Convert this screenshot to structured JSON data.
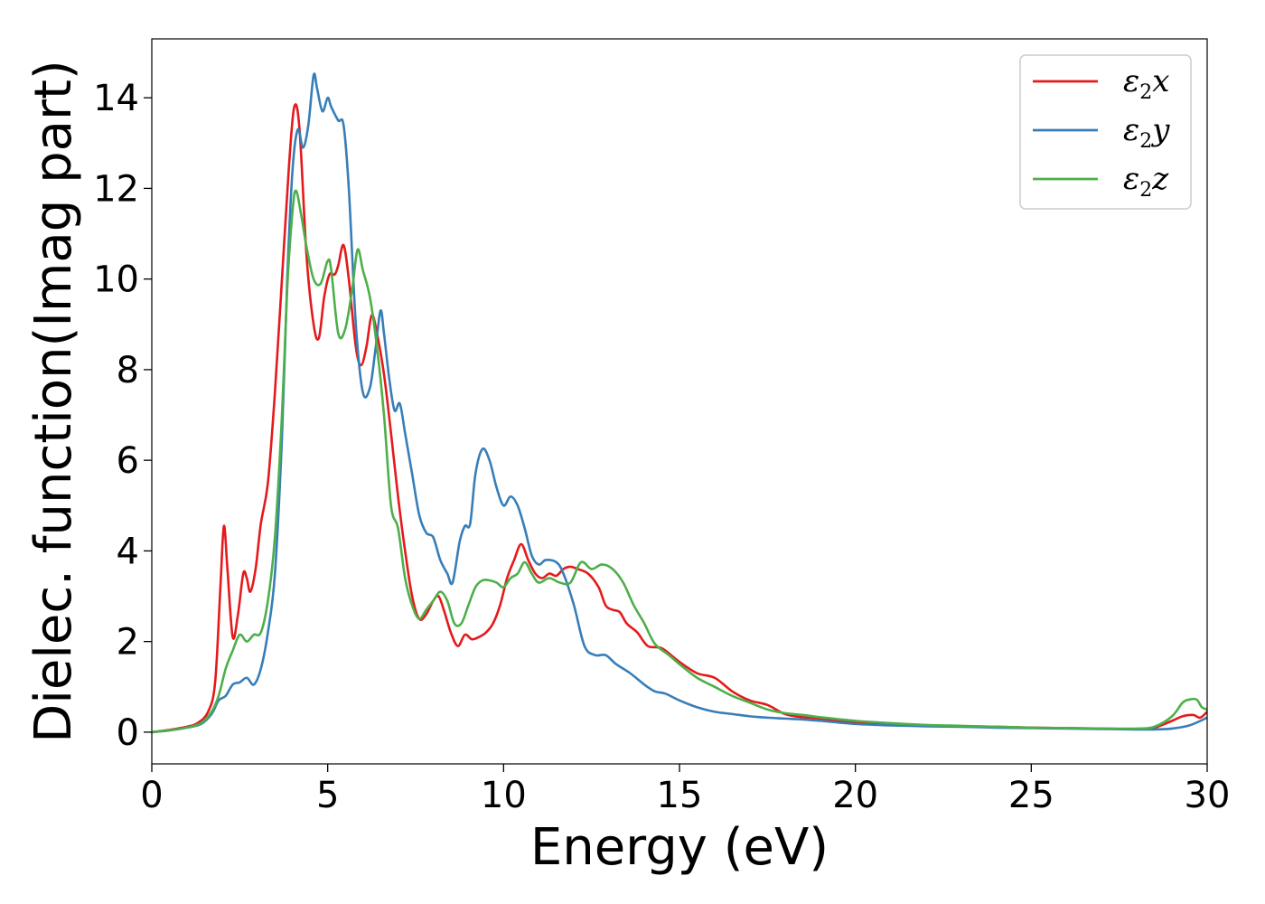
{
  "chart_data": {
    "type": "line",
    "xlabel": "Energy (eV)",
    "ylabel": "Dielec. function(Imag part)",
    "xlim": [
      0,
      30
    ],
    "ylim": [
      -0.7,
      15.3
    ],
    "xticks": [
      0,
      5,
      10,
      15,
      20,
      25,
      30
    ],
    "yticks": [
      0,
      2,
      4,
      6,
      8,
      10,
      12,
      14
    ],
    "grid": false,
    "legend_position": "top-right",
    "series": [
      {
        "name": "ε2x",
        "symbol": "ε",
        "sub": "2",
        "axis": "x",
        "color": "#e41a1c",
        "points": [
          [
            0,
            0
          ],
          [
            0.5,
            0.05
          ],
          [
            1,
            0.12
          ],
          [
            1.3,
            0.2
          ],
          [
            1.6,
            0.45
          ],
          [
            1.8,
            1.1
          ],
          [
            1.95,
            3.2
          ],
          [
            2.05,
            4.55
          ],
          [
            2.15,
            3.6
          ],
          [
            2.3,
            2.1
          ],
          [
            2.45,
            2.6
          ],
          [
            2.6,
            3.5
          ],
          [
            2.7,
            3.4
          ],
          [
            2.8,
            3.1
          ],
          [
            2.95,
            3.6
          ],
          [
            3.1,
            4.6
          ],
          [
            3.3,
            5.5
          ],
          [
            3.5,
            7.5
          ],
          [
            3.7,
            10.0
          ],
          [
            3.9,
            12.5
          ],
          [
            4.05,
            13.8
          ],
          [
            4.2,
            13.3
          ],
          [
            4.4,
            10.5
          ],
          [
            4.6,
            9.0
          ],
          [
            4.75,
            8.7
          ],
          [
            4.9,
            9.6
          ],
          [
            5.05,
            10.1
          ],
          [
            5.2,
            10.1
          ],
          [
            5.3,
            10.3
          ],
          [
            5.45,
            10.75
          ],
          [
            5.6,
            10.0
          ],
          [
            5.8,
            8.5
          ],
          [
            5.95,
            8.1
          ],
          [
            6.1,
            8.5
          ],
          [
            6.25,
            9.2
          ],
          [
            6.4,
            8.8
          ],
          [
            6.6,
            7.9
          ],
          [
            6.8,
            6.6
          ],
          [
            7.0,
            5.2
          ],
          [
            7.2,
            4.0
          ],
          [
            7.4,
            3.0
          ],
          [
            7.6,
            2.5
          ],
          [
            7.8,
            2.6
          ],
          [
            8.0,
            2.9
          ],
          [
            8.15,
            3.0
          ],
          [
            8.3,
            2.7
          ],
          [
            8.5,
            2.2
          ],
          [
            8.7,
            1.9
          ],
          [
            8.9,
            2.15
          ],
          [
            9.1,
            2.05
          ],
          [
            9.3,
            2.1
          ],
          [
            9.5,
            2.2
          ],
          [
            9.7,
            2.4
          ],
          [
            9.9,
            2.8
          ],
          [
            10.1,
            3.4
          ],
          [
            10.3,
            3.8
          ],
          [
            10.5,
            4.15
          ],
          [
            10.7,
            3.8
          ],
          [
            10.9,
            3.5
          ],
          [
            11.1,
            3.4
          ],
          [
            11.3,
            3.5
          ],
          [
            11.5,
            3.45
          ],
          [
            11.7,
            3.6
          ],
          [
            11.9,
            3.65
          ],
          [
            12.1,
            3.6
          ],
          [
            12.4,
            3.5
          ],
          [
            12.7,
            3.2
          ],
          [
            12.9,
            2.8
          ],
          [
            13.1,
            2.7
          ],
          [
            13.3,
            2.65
          ],
          [
            13.5,
            2.4
          ],
          [
            13.8,
            2.2
          ],
          [
            14.1,
            1.9
          ],
          [
            14.5,
            1.85
          ],
          [
            15.0,
            1.55
          ],
          [
            15.5,
            1.3
          ],
          [
            16.0,
            1.2
          ],
          [
            16.5,
            0.9
          ],
          [
            17.0,
            0.7
          ],
          [
            17.5,
            0.6
          ],
          [
            18.0,
            0.4
          ],
          [
            18.5,
            0.33
          ],
          [
            19.0,
            0.3
          ],
          [
            20,
            0.22
          ],
          [
            21,
            0.18
          ],
          [
            22,
            0.14
          ],
          [
            23,
            0.13
          ],
          [
            24,
            0.12
          ],
          [
            25,
            0.1
          ],
          [
            26,
            0.09
          ],
          [
            27,
            0.08
          ],
          [
            28,
            0.07
          ],
          [
            28.5,
            0.1
          ],
          [
            29,
            0.25
          ],
          [
            29.3,
            0.35
          ],
          [
            29.6,
            0.38
          ],
          [
            29.8,
            0.32
          ],
          [
            30,
            0.45
          ]
        ]
      },
      {
        "name": "ε2y",
        "symbol": "ε",
        "sub": "2",
        "axis": "y",
        "color": "#377eb8",
        "points": [
          [
            0,
            0
          ],
          [
            0.5,
            0.04
          ],
          [
            1,
            0.1
          ],
          [
            1.4,
            0.18
          ],
          [
            1.7,
            0.4
          ],
          [
            1.9,
            0.7
          ],
          [
            2.1,
            0.8
          ],
          [
            2.3,
            1.05
          ],
          [
            2.5,
            1.1
          ],
          [
            2.7,
            1.2
          ],
          [
            2.9,
            1.05
          ],
          [
            3.1,
            1.4
          ],
          [
            3.3,
            2.2
          ],
          [
            3.5,
            3.5
          ],
          [
            3.7,
            6.5
          ],
          [
            3.85,
            10.0
          ],
          [
            4.0,
            12.4
          ],
          [
            4.15,
            13.3
          ],
          [
            4.3,
            12.9
          ],
          [
            4.45,
            13.4
          ],
          [
            4.6,
            14.5
          ],
          [
            4.7,
            14.2
          ],
          [
            4.85,
            13.7
          ],
          [
            5.0,
            14.0
          ],
          [
            5.1,
            13.8
          ],
          [
            5.3,
            13.5
          ],
          [
            5.45,
            13.4
          ],
          [
            5.6,
            12.0
          ],
          [
            5.8,
            9.0
          ],
          [
            6.0,
            7.5
          ],
          [
            6.2,
            7.6
          ],
          [
            6.35,
            8.4
          ],
          [
            6.5,
            9.3
          ],
          [
            6.6,
            8.8
          ],
          [
            6.75,
            7.8
          ],
          [
            6.9,
            7.1
          ],
          [
            7.05,
            7.25
          ],
          [
            7.2,
            6.6
          ],
          [
            7.4,
            5.7
          ],
          [
            7.6,
            4.8
          ],
          [
            7.8,
            4.4
          ],
          [
            8.0,
            4.3
          ],
          [
            8.2,
            3.8
          ],
          [
            8.4,
            3.5
          ],
          [
            8.55,
            3.3
          ],
          [
            8.75,
            4.2
          ],
          [
            8.9,
            4.55
          ],
          [
            9.05,
            4.6
          ],
          [
            9.2,
            5.7
          ],
          [
            9.4,
            6.25
          ],
          [
            9.6,
            6.0
          ],
          [
            9.8,
            5.4
          ],
          [
            10.0,
            5.0
          ],
          [
            10.2,
            5.2
          ],
          [
            10.4,
            5.0
          ],
          [
            10.6,
            4.5
          ],
          [
            10.8,
            3.9
          ],
          [
            11.0,
            3.7
          ],
          [
            11.2,
            3.8
          ],
          [
            11.5,
            3.75
          ],
          [
            11.7,
            3.5
          ],
          [
            12.0,
            2.8
          ],
          [
            12.3,
            1.9
          ],
          [
            12.6,
            1.7
          ],
          [
            12.9,
            1.7
          ],
          [
            13.2,
            1.5
          ],
          [
            13.6,
            1.3
          ],
          [
            14.0,
            1.05
          ],
          [
            14.3,
            0.9
          ],
          [
            14.6,
            0.85
          ],
          [
            15.0,
            0.7
          ],
          [
            15.5,
            0.55
          ],
          [
            16.0,
            0.45
          ],
          [
            16.5,
            0.4
          ],
          [
            17.0,
            0.35
          ],
          [
            17.5,
            0.32
          ],
          [
            18.0,
            0.3
          ],
          [
            18.5,
            0.28
          ],
          [
            19,
            0.25
          ],
          [
            20,
            0.18
          ],
          [
            21,
            0.15
          ],
          [
            22,
            0.13
          ],
          [
            23,
            0.12
          ],
          [
            24,
            0.1
          ],
          [
            25,
            0.09
          ],
          [
            26,
            0.08
          ],
          [
            27,
            0.07
          ],
          [
            28,
            0.06
          ],
          [
            28.5,
            0.06
          ],
          [
            29,
            0.08
          ],
          [
            29.5,
            0.15
          ],
          [
            30,
            0.32
          ]
        ]
      },
      {
        "name": "ε2z",
        "symbol": "ε",
        "sub": "2",
        "axis": "z",
        "color": "#4daf4a",
        "points": [
          [
            0,
            0
          ],
          [
            0.5,
            0.04
          ],
          [
            1,
            0.1
          ],
          [
            1.4,
            0.2
          ],
          [
            1.7,
            0.45
          ],
          [
            1.9,
            0.8
          ],
          [
            2.1,
            1.4
          ],
          [
            2.3,
            1.8
          ],
          [
            2.5,
            2.15
          ],
          [
            2.7,
            2.0
          ],
          [
            2.9,
            2.15
          ],
          [
            3.1,
            2.2
          ],
          [
            3.3,
            2.9
          ],
          [
            3.5,
            4.3
          ],
          [
            3.7,
            7.0
          ],
          [
            3.85,
            9.8
          ],
          [
            4.0,
            11.5
          ],
          [
            4.1,
            11.95
          ],
          [
            4.25,
            11.4
          ],
          [
            4.4,
            10.7
          ],
          [
            4.6,
            10.0
          ],
          [
            4.8,
            9.9
          ],
          [
            5.0,
            10.4
          ],
          [
            5.1,
            10.2
          ],
          [
            5.3,
            8.8
          ],
          [
            5.5,
            8.9
          ],
          [
            5.7,
            9.8
          ],
          [
            5.85,
            10.65
          ],
          [
            6.0,
            10.2
          ],
          [
            6.2,
            9.6
          ],
          [
            6.4,
            8.5
          ],
          [
            6.6,
            7.0
          ],
          [
            6.8,
            5.0
          ],
          [
            7.0,
            4.5
          ],
          [
            7.2,
            3.4
          ],
          [
            7.4,
            2.8
          ],
          [
            7.6,
            2.5
          ],
          [
            7.8,
            2.7
          ],
          [
            8.0,
            2.9
          ],
          [
            8.2,
            3.1
          ],
          [
            8.4,
            2.9
          ],
          [
            8.6,
            2.4
          ],
          [
            8.8,
            2.4
          ],
          [
            9.0,
            2.8
          ],
          [
            9.2,
            3.2
          ],
          [
            9.4,
            3.35
          ],
          [
            9.6,
            3.35
          ],
          [
            9.8,
            3.3
          ],
          [
            10.0,
            3.2
          ],
          [
            10.2,
            3.4
          ],
          [
            10.4,
            3.5
          ],
          [
            10.6,
            3.75
          ],
          [
            10.8,
            3.5
          ],
          [
            11.0,
            3.3
          ],
          [
            11.3,
            3.4
          ],
          [
            11.6,
            3.3
          ],
          [
            11.9,
            3.3
          ],
          [
            12.2,
            3.75
          ],
          [
            12.5,
            3.6
          ],
          [
            12.8,
            3.7
          ],
          [
            13.1,
            3.6
          ],
          [
            13.4,
            3.3
          ],
          [
            13.7,
            2.8
          ],
          [
            14.0,
            2.4
          ],
          [
            14.3,
            1.95
          ],
          [
            14.7,
            1.7
          ],
          [
            15.0,
            1.5
          ],
          [
            15.5,
            1.2
          ],
          [
            16.0,
            1.0
          ],
          [
            16.5,
            0.8
          ],
          [
            17.0,
            0.65
          ],
          [
            17.5,
            0.5
          ],
          [
            18.0,
            0.42
          ],
          [
            18.5,
            0.38
          ],
          [
            19,
            0.33
          ],
          [
            20,
            0.25
          ],
          [
            21,
            0.2
          ],
          [
            22,
            0.16
          ],
          [
            23,
            0.14
          ],
          [
            24,
            0.12
          ],
          [
            25,
            0.1
          ],
          [
            26,
            0.09
          ],
          [
            27,
            0.08
          ],
          [
            28,
            0.08
          ],
          [
            28.5,
            0.12
          ],
          [
            29,
            0.35
          ],
          [
            29.3,
            0.65
          ],
          [
            29.5,
            0.72
          ],
          [
            29.7,
            0.72
          ],
          [
            29.85,
            0.55
          ],
          [
            30,
            0.5
          ]
        ]
      }
    ]
  }
}
